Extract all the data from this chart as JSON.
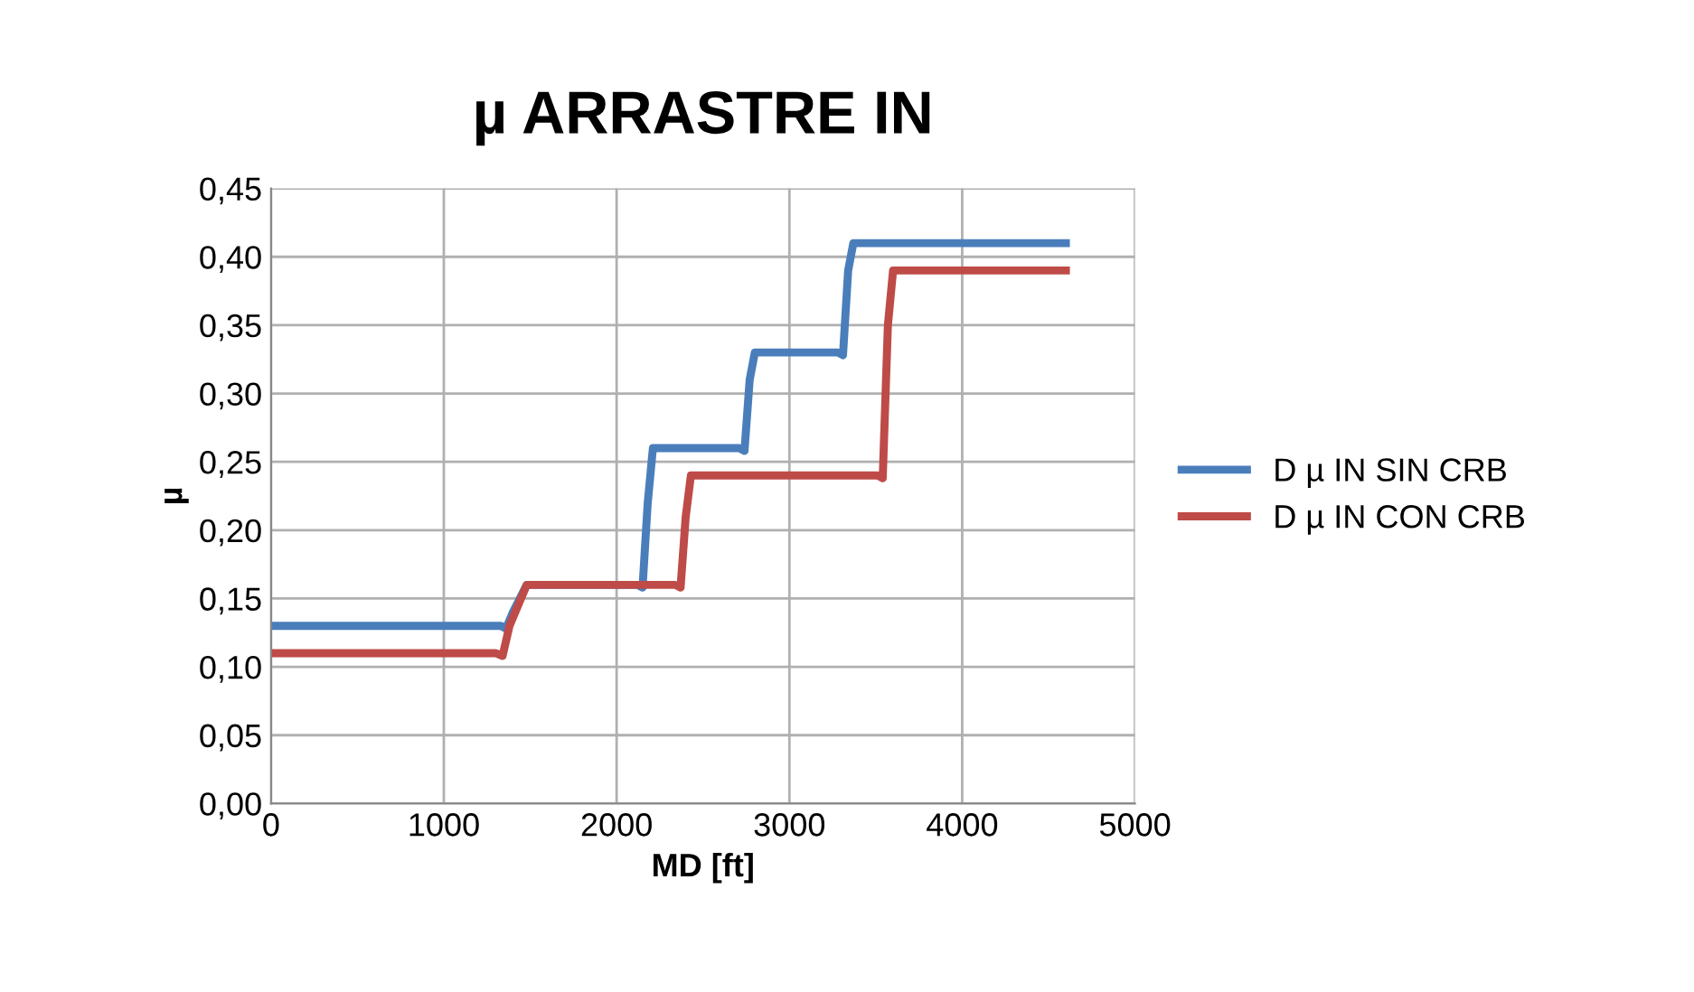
{
  "chart_data": {
    "type": "line",
    "title": "µ ARRASTRE IN",
    "xlabel": "MD [ft]",
    "ylabel": "µ",
    "xlim": [
      0,
      5000
    ],
    "xticks": [
      0,
      1000,
      2000,
      3000,
      4000,
      5000
    ],
    "ylim": [
      0,
      0.45
    ],
    "yticks": [
      {
        "value": 0,
        "label": "0,00"
      },
      {
        "value": 0.05,
        "label": "0,05"
      },
      {
        "value": 0.1,
        "label": "0,10"
      },
      {
        "value": 0.15,
        "label": "0,15"
      },
      {
        "value": 0.2,
        "label": "0,20"
      },
      {
        "value": 0.25,
        "label": "0,25"
      },
      {
        "value": 0.3,
        "label": "0,30"
      },
      {
        "value": 0.35,
        "label": "0,35"
      },
      {
        "value": 0.4,
        "label": "0,40"
      },
      {
        "value": 0.45,
        "label": "0,45"
      }
    ],
    "grid": true,
    "legend": "right",
    "marker": "none",
    "line_style": "solid",
    "series": [
      {
        "name": "D µ IN SIN CRB",
        "color": "#4a7ebb",
        "x": [
          0,
          1330,
          1360,
          1400,
          1480,
          2120,
          2150,
          2180,
          2210,
          2710,
          2740,
          2770,
          2800,
          3280,
          3310,
          3340,
          3370,
          4600
        ],
        "values": [
          0.13,
          0.13,
          0.128,
          0.14,
          0.16,
          0.16,
          0.158,
          0.22,
          0.26,
          0.26,
          0.258,
          0.31,
          0.33,
          0.33,
          0.328,
          0.39,
          0.41,
          0.41
        ]
      },
      {
        "name": "D µ IN CON CRB",
        "color": "#be4b48",
        "x": [
          0,
          1300,
          1340,
          1380,
          1480,
          2340,
          2370,
          2400,
          2430,
          3510,
          3540,
          3570,
          3600,
          4600
        ],
        "values": [
          0.11,
          0.11,
          0.108,
          0.13,
          0.16,
          0.16,
          0.158,
          0.21,
          0.24,
          0.24,
          0.238,
          0.35,
          0.39,
          0.39
        ]
      }
    ]
  }
}
